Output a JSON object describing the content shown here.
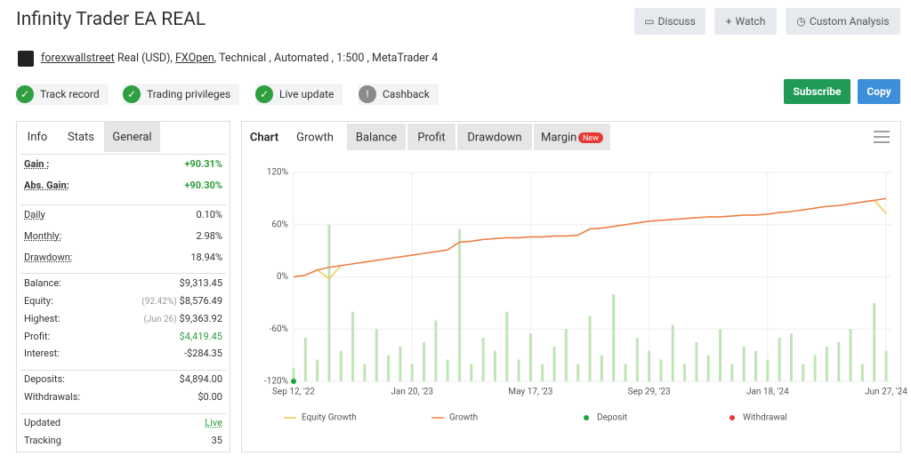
{
  "header": {
    "title": "Infinity Trader EA REAL",
    "buttons": [
      "Discuss",
      "Watch",
      "Custom Analysis"
    ],
    "owner": "forexwallstreet",
    "account_type": "Real (USD),",
    "broker": "FXOpen",
    "details": ", Technical , Automated , 1:500 , MetaTrader 4",
    "badges": [
      "Track record",
      "Trading privileges",
      "Live update",
      "Cashback"
    ],
    "subscribe": "Subscribe",
    "copy": "Copy"
  },
  "stats": {
    "tabs": [
      "Info",
      "Stats",
      "General"
    ],
    "groups": [
      [
        {
          "label": "Gain :",
          "value": "+90.31%",
          "color": "#2e9e3e"
        },
        {
          "label": "Abs. Gain:",
          "value": "+90.30%",
          "color": "#2e9e3e"
        }
      ],
      [
        {
          "label": "Daily",
          "value": "0.10%"
        },
        {
          "label": "Monthly:",
          "value": "2.98%"
        },
        {
          "label": "Drawdown:",
          "value": "18.94%"
        }
      ],
      [
        {
          "label": "Balance:",
          "value": "$9,313.45"
        },
        {
          "label": "Equity:",
          "note": "(92.42%)",
          "value": "$8,576.49"
        },
        {
          "label": "Highest:",
          "note": "(Jun 26)",
          "value": "$9,363.92"
        },
        {
          "label": "Profit:",
          "value": "$4,419.45",
          "color": "#2e9e3e"
        },
        {
          "label": "Interest:",
          "value": "-$284.35"
        }
      ],
      [
        {
          "label": "Deposits:",
          "value": "$4,894.00"
        },
        {
          "label": "Withdrawals:",
          "value": "$0.00"
        }
      ],
      [
        {
          "label": "Updated",
          "value": "Live",
          "color": "#2e9e3e"
        },
        {
          "label": "Tracking",
          "value": "35"
        }
      ]
    ]
  },
  "chart_tabs": {
    "tabs": [
      "Chart",
      "Growth",
      "Balance",
      "Profit",
      "Drawdown",
      "Margin"
    ],
    "badge": "New"
  },
  "chart_data": {
    "type": "line",
    "categories": [
      "Sep 12, '22",
      null,
      null,
      null,
      null,
      null,
      null,
      null,
      null,
      null,
      "Jan 20, '23",
      null,
      null,
      null,
      null,
      null,
      null,
      null,
      null,
      null,
      "May 17, '23",
      null,
      null,
      null,
      null,
      null,
      null,
      null,
      null,
      null,
      "Sep 29, '23",
      null,
      null,
      null,
      null,
      null,
      null,
      null,
      null,
      null,
      "Jan 18, '24",
      null,
      null,
      null,
      null,
      null,
      null,
      null,
      null,
      null,
      "Jun 27, '24"
    ],
    "ylim": [
      -120,
      120
    ],
    "yticks": [
      {
        "value": 120,
        "label": "120%"
      },
      {
        "value": 60,
        "label": "60%"
      },
      {
        "value": 0,
        "label": "0%"
      },
      {
        "value": -60,
        "label": "-60%"
      },
      {
        "value": -120,
        "label": "-120%"
      }
    ],
    "grid": true,
    "series": [
      {
        "name": "Equity Growth",
        "color": "#f2c94c",
        "values": [
          0,
          2,
          8,
          -2,
          13,
          15,
          17,
          19,
          21,
          23,
          25,
          27,
          29,
          31,
          40,
          41,
          43,
          44,
          45,
          45,
          46,
          46,
          47,
          47,
          48,
          55,
          56,
          58,
          60,
          62,
          64,
          65,
          66,
          67,
          68,
          69,
          69,
          70,
          71,
          71,
          72,
          74,
          75,
          77,
          79,
          81,
          82,
          84,
          86,
          88,
          73
        ]
      },
      {
        "name": "Growth",
        "color": "#ed7d4a",
        "values": [
          0,
          2,
          8,
          11,
          13,
          15,
          17,
          19,
          21,
          23,
          25,
          27,
          29,
          31,
          40,
          41,
          43,
          44,
          45,
          45,
          46,
          46,
          47,
          47,
          48,
          55,
          56,
          58,
          60,
          62,
          64,
          65,
          66,
          67,
          68,
          69,
          69,
          70,
          71,
          71,
          72,
          74,
          75,
          77,
          79,
          81,
          82,
          84,
          86,
          88,
          90
        ]
      }
    ],
    "bars": {
      "color": "#bfe5b6",
      "values": [
        -105,
        -70,
        -95,
        60,
        -85,
        -40,
        -100,
        -60,
        -90,
        -80,
        -100,
        -75,
        -50,
        -95,
        55,
        -100,
        -70,
        -85,
        -40,
        -95,
        -65,
        -100,
        -80,
        -60,
        -100,
        -45,
        -90,
        -20,
        -100,
        -70,
        -85,
        -95,
        -55,
        -100,
        -75,
        -90,
        -60,
        -100,
        -80,
        -85,
        -95,
        -70,
        -65,
        -100,
        -90,
        -80,
        -75,
        -60,
        -100,
        -30,
        -85
      ]
    },
    "markers": [
      {
        "name": "Deposit",
        "color": "#19a33b",
        "values": [
          -120
        ]
      },
      {
        "name": "Withdrawal",
        "color": "#e53935",
        "values": []
      }
    ]
  }
}
